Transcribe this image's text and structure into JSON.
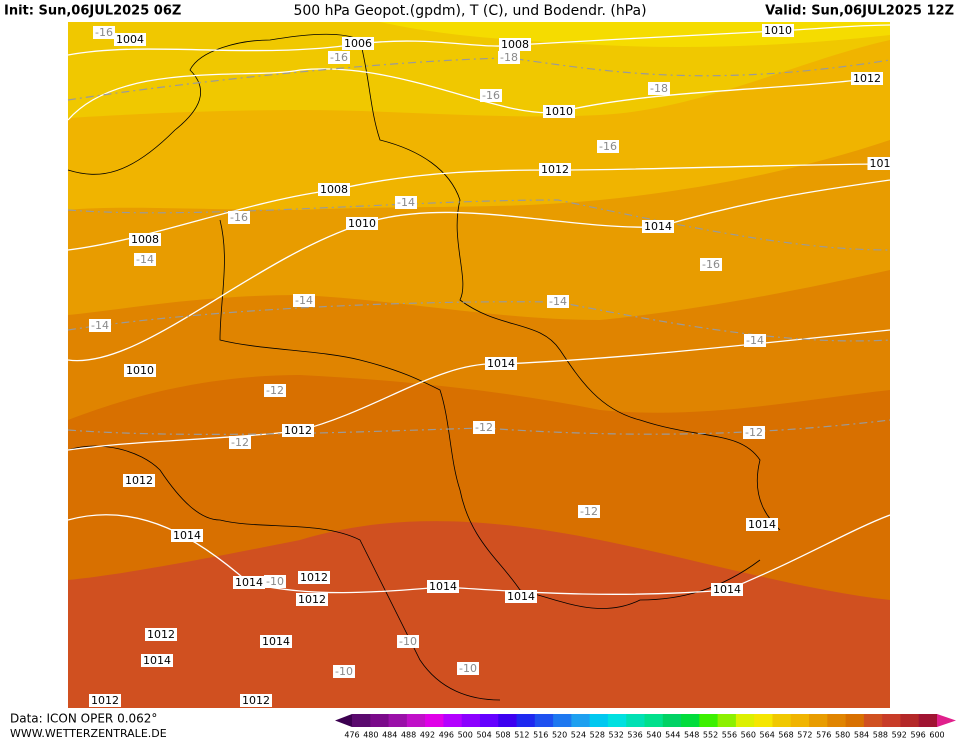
{
  "header": {
    "init": "Init: Sun,06JUL2025 06Z",
    "title": "500 hPa Geopot.(gpdm), T (C), und Bodendr. (hPa)",
    "valid": "Valid: Sun,06JUL2025 12Z"
  },
  "isobar_labels": [
    "1004",
    "1006",
    "1008",
    "1010",
    "1012",
    "1010",
    "1012",
    "101",
    "1008",
    "1010",
    "1014",
    "1008",
    "1014",
    "1010",
    "1012",
    "1012",
    "1014",
    "1014",
    "1014",
    "1012",
    "1012",
    "1014",
    "1014",
    "1014",
    "1012",
    "1014",
    "1014",
    "1012",
    "1012"
  ],
  "temperature_labels": [
    "-16",
    "-16",
    "-18",
    "-16",
    "-18",
    "-16",
    "-14",
    "-16",
    "-14",
    "-16",
    "-14",
    "-14",
    "-14",
    "-14",
    "-12",
    "-12",
    "-12",
    "-12",
    "-12",
    "-10",
    "-10",
    "-10",
    "-10"
  ],
  "footer": {
    "data": "Data: ICON OPER 0.062°",
    "site": "WWW.WETTERZENTRALE.DE"
  },
  "color_scale": {
    "labels": [
      476,
      480,
      484,
      488,
      492,
      496,
      500,
      504,
      508,
      512,
      516,
      520,
      524,
      528,
      532,
      536,
      540,
      544,
      548,
      552,
      556,
      560,
      564,
      568,
      572,
      576,
      580,
      584,
      588,
      592,
      596,
      600
    ],
    "colors": [
      "#3c0050",
      "#5a0a6e",
      "#7a0a8a",
      "#9a10a8",
      "#c010c8",
      "#e000e8",
      "#b400ff",
      "#8c00ff",
      "#6400ff",
      "#3c00f0",
      "#1e28f0",
      "#1e50f0",
      "#1e78f0",
      "#1ea0f0",
      "#00c8f0",
      "#00e0e0",
      "#00e0b4",
      "#00e08c",
      "#00d264",
      "#00dc3c",
      "#3cf000",
      "#8cf000",
      "#dcf000",
      "#f5e600",
      "#f0c800",
      "#f0b400",
      "#e89c00",
      "#e08400",
      "#d87000",
      "#d05020",
      "#c83c28",
      "#b42828",
      "#a01432",
      "#e0208c"
    ]
  }
}
